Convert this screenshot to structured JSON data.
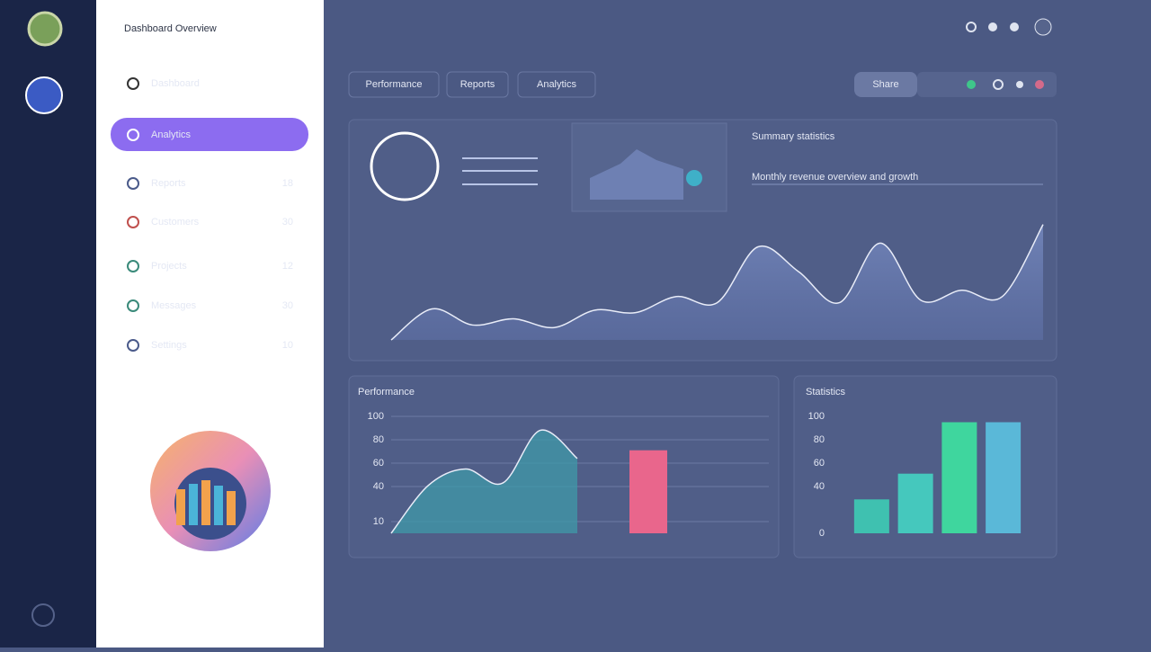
{
  "sidebar": {
    "title": "Dashboard Overview",
    "nav": [
      {
        "label": "Dashboard"
      },
      {
        "label": "Analytics"
      },
      {
        "label": "Reports",
        "badge": "18"
      },
      {
        "label": "Customers",
        "badge": "30"
      },
      {
        "label": "Projects",
        "badge": "12"
      },
      {
        "label": "Messages",
        "badge": "30"
      },
      {
        "label": "Settings",
        "badge": "10"
      }
    ]
  },
  "toolbar": {
    "tabs": [
      "Performance",
      "Reports",
      "Analytics"
    ],
    "button": "Share"
  },
  "summary_card": {
    "title": "Summary statistics",
    "text": "Monthly revenue overview and growth"
  },
  "chart_data": [
    {
      "type": "area",
      "values": [
        0,
        25,
        12,
        17,
        10,
        24,
        22,
        35,
        30,
        75,
        55,
        30,
        78,
        32,
        40,
        35,
        93
      ],
      "ylim": [
        0,
        100
      ],
      "color": "#7088c8"
    },
    {
      "type": "area",
      "title": "Performance",
      "values": [
        0,
        41,
        55,
        43,
        88,
        64
      ],
      "ylim": [
        0,
        100
      ],
      "yticks": [
        10,
        40,
        60,
        80,
        100
      ],
      "grid": true,
      "color": "#3f9aa8"
    },
    {
      "type": "bar",
      "values": [
        71
      ],
      "ylim": [
        0,
        100
      ],
      "color": "#e9668c"
    },
    {
      "type": "bar",
      "title": "Statistics",
      "values": [
        29,
        51,
        95,
        95
      ],
      "ylim": [
        0,
        100
      ],
      "yticks": [
        0,
        40,
        60,
        80,
        100
      ],
      "colors": [
        "#3fc1b0",
        "#45c8bd",
        "#3fd69e",
        "#5ab8d8"
      ]
    }
  ]
}
